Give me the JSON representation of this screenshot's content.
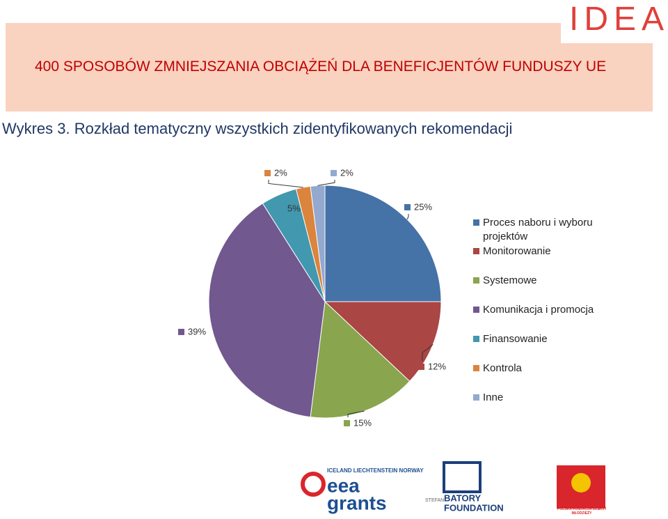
{
  "header": {
    "title": "400 SPOSOBÓW ZMNIEJSZANIA OBCIĄŻEŃ DLA BENEFICJENTÓW FUNDUSZY UE",
    "logo": "IDEA"
  },
  "chart_data": {
    "type": "pie",
    "title": "Wykres 3. Rozkład tematyczny wszystkich zidentyfikowanych rekomendacji",
    "categories": [
      "Proces naboru i wyboru projektów",
      "Monitorowanie",
      "Systemowe",
      "Komunikacja i promocja",
      "Finansowanie",
      "Kontrola",
      "Inne"
    ],
    "values": [
      25,
      12,
      15,
      39,
      5,
      2,
      2
    ],
    "value_labels": [
      "25%",
      "12%",
      "15%",
      "39%",
      "5%",
      "2%",
      "2%"
    ],
    "colors": [
      "#4572a7",
      "#aa4643",
      "#89a54e",
      "#71588f",
      "#4198af",
      "#db843d",
      "#93a9cf"
    ],
    "legend": "right"
  },
  "footer": {
    "logos": [
      "ICELAND LIECHTENSTEIN NORWAY",
      "eea",
      "grants",
      "STEFAN",
      "BATORY",
      "FOUNDATION",
      "POLSKA FUNDACJA DZIECI I MŁODZIEŻY"
    ]
  }
}
